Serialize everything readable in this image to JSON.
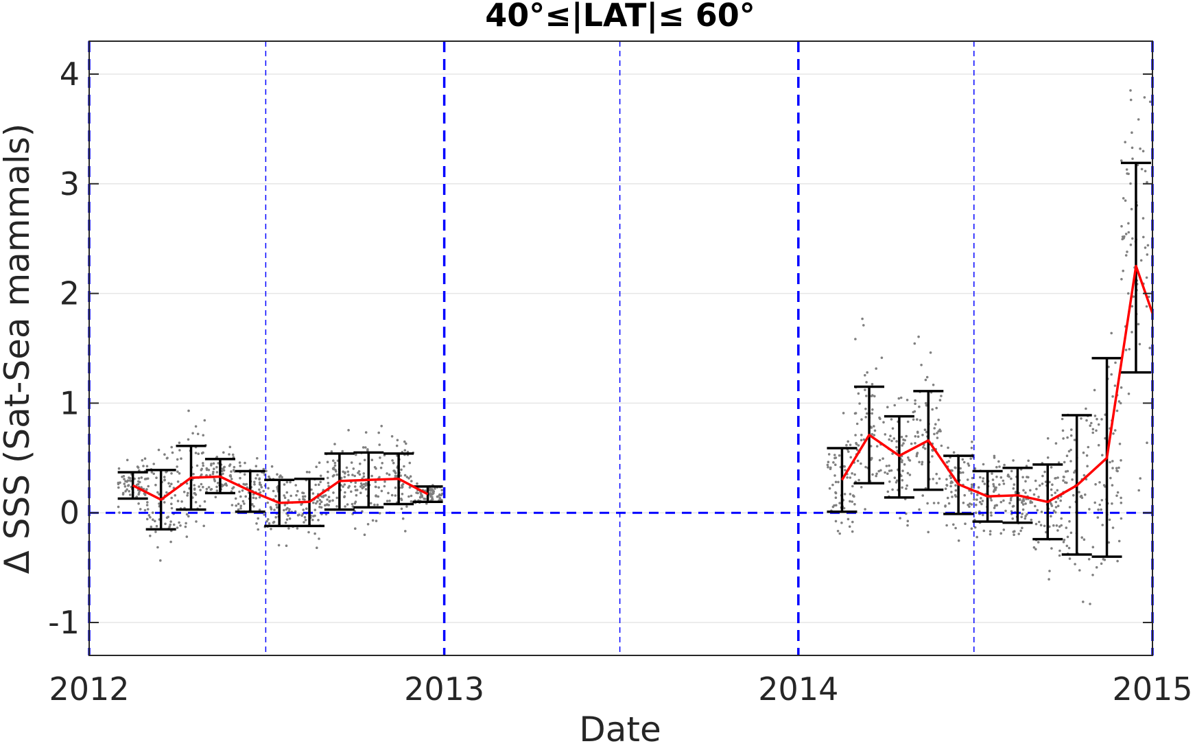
{
  "chart_data": {
    "type": "line",
    "title": "40°≤|LAT|≤ 60°",
    "xlabel": "Date",
    "ylabel": "Δ SSS (Sat-Sea mammals)",
    "xlim": [
      "2012-01-01",
      "2015-01-01"
    ],
    "ylim": [
      -1.3,
      4.3
    ],
    "x_ticks": [
      "2012",
      "2013",
      "2014",
      "2015"
    ],
    "y_ticks": [
      "-1",
      "0",
      "1",
      "2",
      "3",
      "4"
    ],
    "grid": "horizontal",
    "reference_lines": {
      "horizontal_zero": 0,
      "year_boundaries": [
        "2012-01-01",
        "2013-01-01",
        "2014-01-01",
        "2015-01-01"
      ],
      "mid_year": [
        "2012-07-01",
        "2013-07-01",
        "2014-07-01"
      ]
    },
    "colors": {
      "mean_line": "#ff0000",
      "error_bars": "#000000",
      "scatter": "#808080",
      "reference": "#0000ff",
      "grid": "#e6e6e6",
      "axes": "#262626"
    },
    "series": [
      {
        "kind": "mean",
        "x": [
          "2012-02-15",
          "2012-03-15",
          "2012-04-15",
          "2012-05-15",
          "2012-06-15",
          "2012-07-15",
          "2012-08-15",
          "2012-09-15",
          "2012-10-15",
          "2012-11-15",
          "2012-12-15",
          "2014-02-15",
          "2014-03-15",
          "2014-04-15",
          "2014-05-15",
          "2014-06-15",
          "2014-07-15",
          "2014-08-15",
          "2014-09-15",
          "2014-10-15",
          "2014-11-15",
          "2014-12-15",
          "2015-01-01"
        ],
        "y": [
          0.25,
          0.12,
          0.32,
          0.33,
          0.2,
          0.09,
          0.1,
          0.29,
          0.3,
          0.31,
          0.17,
          0.3,
          0.71,
          0.52,
          0.66,
          0.26,
          0.15,
          0.16,
          0.1,
          0.25,
          0.5,
          2.25,
          1.82
        ]
      },
      {
        "kind": "errorbar",
        "x": [
          "2012-02-15",
          "2012-03-15",
          "2012-04-15",
          "2012-05-15",
          "2012-06-15",
          "2012-07-15",
          "2012-08-15",
          "2012-09-15",
          "2012-10-15",
          "2012-11-15",
          "2012-12-15",
          "2014-02-15",
          "2014-03-15",
          "2014-04-15",
          "2014-05-15",
          "2014-06-15",
          "2014-07-15",
          "2014-08-15",
          "2014-09-15",
          "2014-10-15",
          "2014-11-15",
          "2014-12-15"
        ],
        "low": [
          0.13,
          -0.15,
          0.03,
          0.18,
          0.01,
          -0.12,
          -0.12,
          0.03,
          0.05,
          0.08,
          0.1,
          0.01,
          0.27,
          0.14,
          0.21,
          -0.01,
          -0.08,
          -0.09,
          -0.24,
          -0.38,
          -0.4,
          1.28
        ],
        "high": [
          0.37,
          0.39,
          0.61,
          0.49,
          0.38,
          0.3,
          0.31,
          0.54,
          0.55,
          0.54,
          0.24,
          0.59,
          1.15,
          0.88,
          1.11,
          0.52,
          0.38,
          0.41,
          0.44,
          0.89,
          1.41,
          3.19
        ]
      }
    ]
  }
}
